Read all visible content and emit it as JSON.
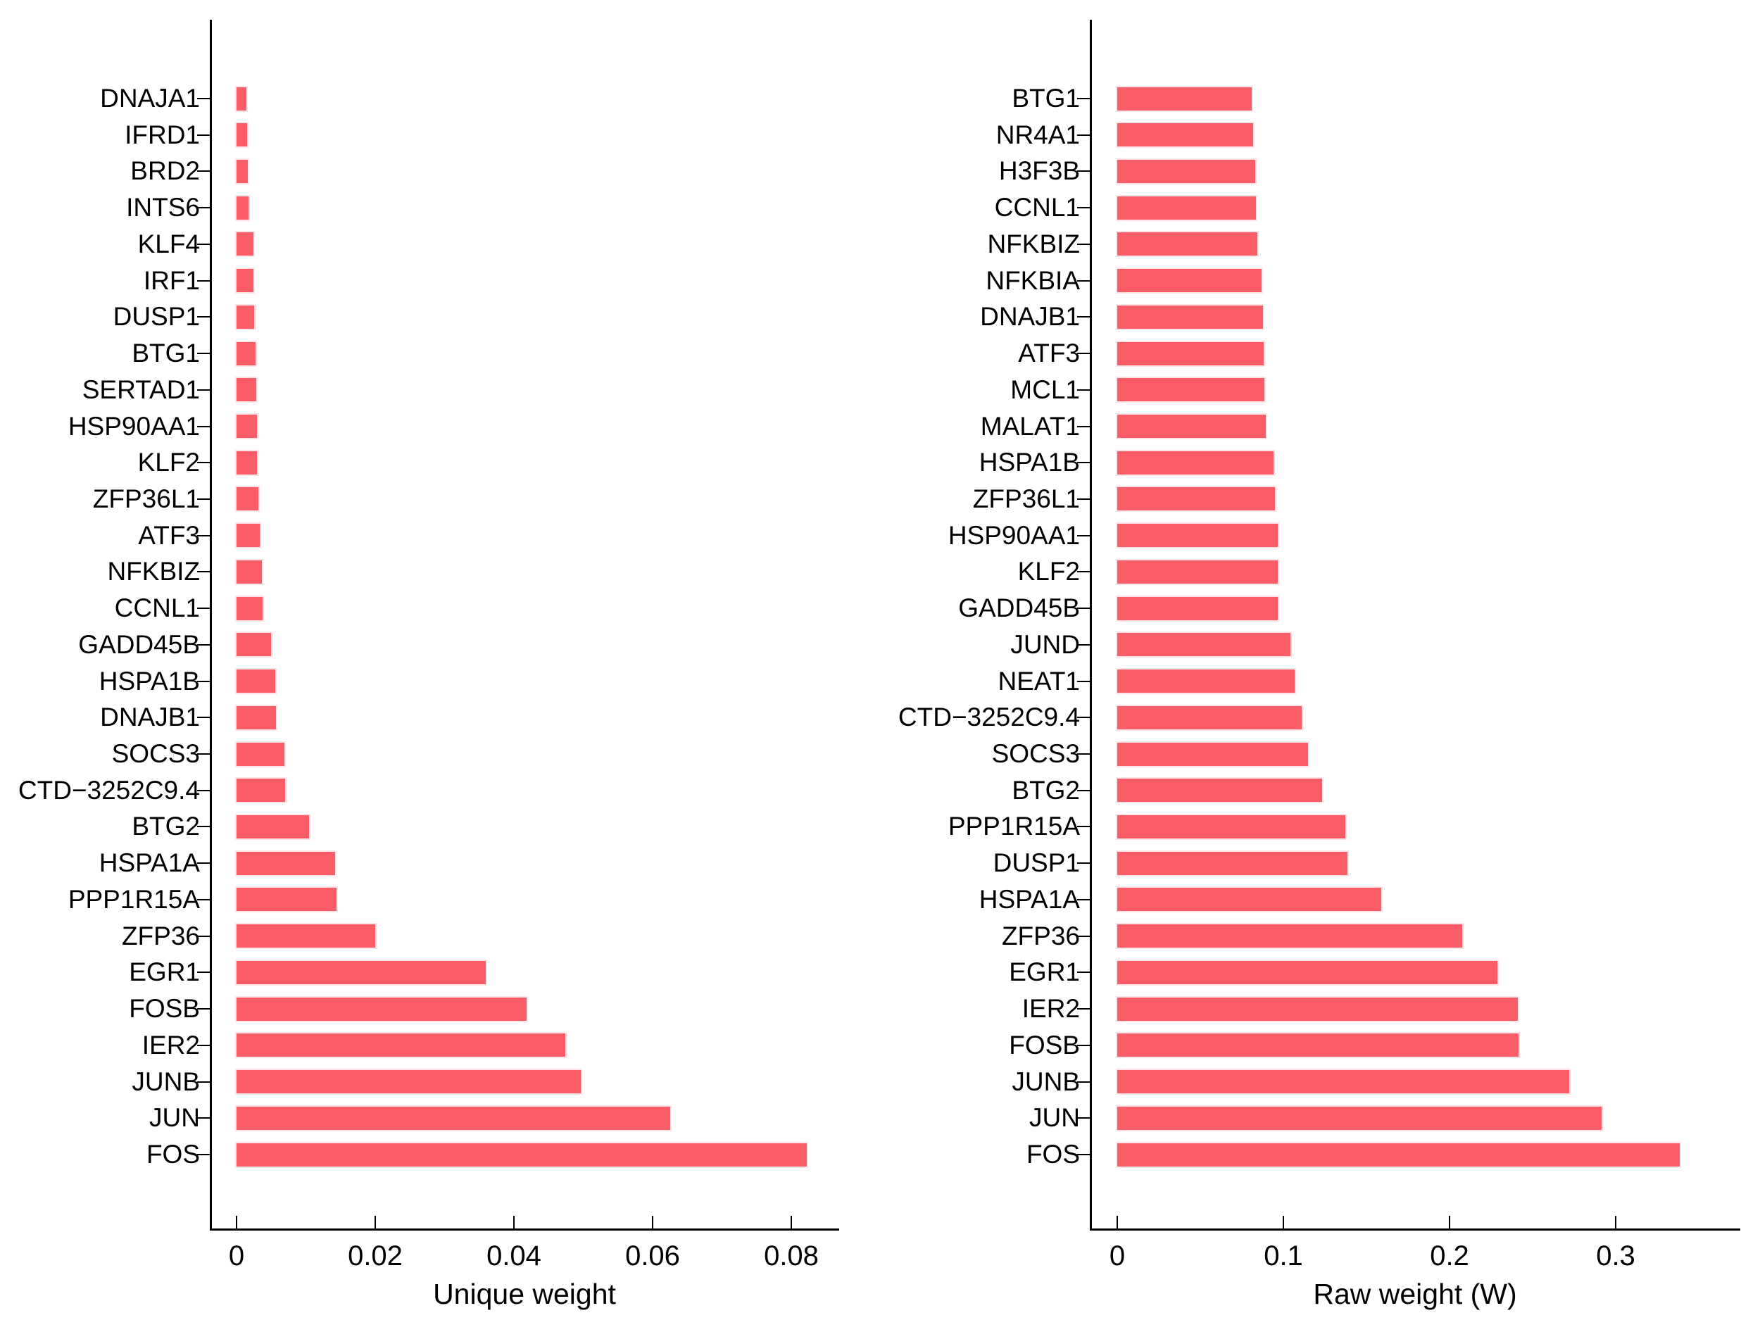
{
  "figure": {
    "background": "#ffffff",
    "bar_color": "#fb5d66",
    "bar_edge_color": "rgba(255,224,228,0.9)",
    "axis_color": "#000000",
    "text_color": "#000000"
  },
  "chart_data": [
    {
      "type": "bar",
      "orientation": "horizontal",
      "title": "",
      "xlabel": "Unique weight",
      "ylabel": "",
      "legend": null,
      "grid": false,
      "xlim": [
        0,
        0.087
      ],
      "xticks": [
        0,
        0.02,
        0.04,
        0.06,
        0.08
      ],
      "xtick_labels": [
        "0",
        "0.02",
        "0.04",
        "0.06",
        "0.08"
      ],
      "categories": [
        "DNAJA1",
        "IFRD1",
        "BRD2",
        "INTS6",
        "KLF4",
        "IRF1",
        "DUSP1",
        "BTG1",
        "SERTAD1",
        "HSP90AA1",
        "KLF2",
        "ZFP36L1",
        "ATF3",
        "NFKBIZ",
        "CCNL1",
        "GADD45B",
        "HSPA1B",
        "DNAJB1",
        "SOCS3",
        "CTD−3252C9.4",
        "BTG2",
        "HSPA1A",
        "PPP1R15A",
        "ZFP36",
        "EGR1",
        "FOSB",
        "IER2",
        "JUNB",
        "JUN",
        "FOS"
      ],
      "values": [
        0.0014,
        0.0015,
        0.0016,
        0.0017,
        0.0024,
        0.0024,
        0.0025,
        0.0027,
        0.0028,
        0.0029,
        0.0029,
        0.0031,
        0.0033,
        0.0037,
        0.0038,
        0.005,
        0.0056,
        0.0057,
        0.0069,
        0.007,
        0.0105,
        0.0142,
        0.0144,
        0.02,
        0.0359,
        0.0418,
        0.0474,
        0.0496,
        0.0625,
        0.0822
      ]
    },
    {
      "type": "bar",
      "orientation": "horizontal",
      "title": "",
      "xlabel": "Raw weight (W)",
      "ylabel": "",
      "legend": null,
      "grid": false,
      "xlim": [
        0,
        0.375
      ],
      "xticks": [
        0,
        0.1,
        0.2,
        0.3
      ],
      "xtick_labels": [
        "0",
        "0.1",
        "0.2",
        "0.3"
      ],
      "categories": [
        "BTG1",
        "NR4A1",
        "H3F3B",
        "CCNL1",
        "NFKBIZ",
        "NFKBIA",
        "DNAJB1",
        "ATF3",
        "MCL1",
        "MALAT1",
        "HSPA1B",
        "ZFP36L1",
        "HSP90AA1",
        "KLF2",
        "GADD45B",
        "JUND",
        "NEAT1",
        "CTD−3252C9.4",
        "SOCS3",
        "BTG2",
        "PPP1R15A",
        "DUSP1",
        "HSPA1A",
        "ZFP36",
        "EGR1",
        "IER2",
        "FOSB",
        "JUNB",
        "JUN",
        "FOS"
      ],
      "values": [
        0.0808,
        0.0819,
        0.0832,
        0.0835,
        0.0843,
        0.087,
        0.0878,
        0.0883,
        0.0885,
        0.0895,
        0.0941,
        0.0949,
        0.0965,
        0.0967,
        0.0968,
        0.1042,
        0.1069,
        0.1111,
        0.1147,
        0.1234,
        0.1373,
        0.1385,
        0.1589,
        0.2076,
        0.2288,
        0.2413,
        0.2417,
        0.2719,
        0.2917,
        0.3386
      ]
    }
  ]
}
